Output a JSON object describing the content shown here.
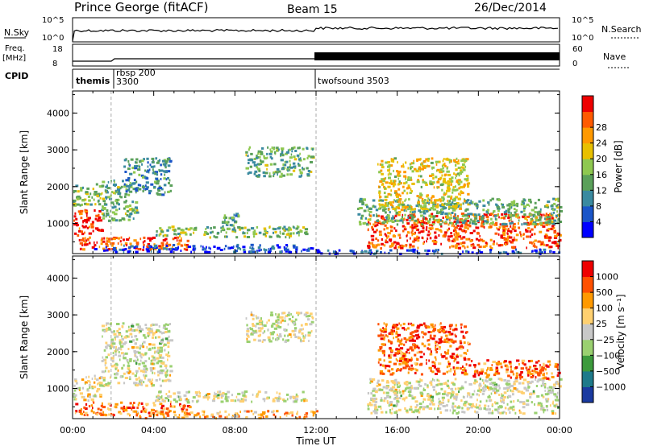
{
  "header": {
    "station": "Prince George (fitACF)",
    "beam": "Beam 15",
    "date": "26/Dec/2014"
  },
  "top_panels": {
    "nsky_label": "N.Sky",
    "nsky_ticks": [
      "10^5",
      "10^0"
    ],
    "nsearch_label": "N.Search",
    "nsearch_ticks": [
      "10^5",
      "10^0"
    ],
    "freq_label": "Freq.",
    "freq_unit": "[MHz]",
    "freq_ticks": [
      "18",
      "8"
    ],
    "nave_label": "Nave",
    "nave_ticks": [
      "60",
      "0"
    ],
    "cpid_label": "CPID",
    "cpid_segments": [
      {
        "label": "themis",
        "start_hour": 0
      },
      {
        "label": "rbsp 200",
        "start_hour": 1.6
      },
      {
        "label": "3300",
        "start_hour": 1.6
      },
      {
        "label": "twofsound 3503",
        "start_hour": 12
      }
    ]
  },
  "chart_data": [
    {
      "type": "heatmap",
      "name": "Power",
      "ylabel": "Slant Range [km]",
      "xlabel": "Time UT",
      "xlim_hours": [
        0,
        24
      ],
      "ylim_km": [
        180,
        4600
      ],
      "yticks": [
        "1000",
        "2000",
        "3000",
        "4000"
      ],
      "xticks": [
        "00:00",
        "04:00",
        "08:00",
        "12:00",
        "16:00",
        "20:00",
        "00:00"
      ],
      "colorbar": {
        "label": "Power [dB]",
        "ticks": [
          "4",
          "8",
          "12",
          "16",
          "20",
          "24",
          "28"
        ],
        "colors": [
          "#0000ff",
          "#1a55c8",
          "#3a8aa0",
          "#5aa05a",
          "#8ec850",
          "#e8c000",
          "#ff9900",
          "#ff5a00",
          "#ee0000"
        ]
      },
      "regions": [
        {
          "t0": 0.0,
          "t1": 1.4,
          "r0": 700,
          "r1": 1400,
          "level": 0.92
        },
        {
          "t0": 0.0,
          "t1": 1.6,
          "r0": 1500,
          "r1": 2100,
          "level": 0.45
        },
        {
          "t0": 0.1,
          "t1": 5.8,
          "r0": 300,
          "r1": 650,
          "level": 0.85
        },
        {
          "t0": 1.4,
          "t1": 3.2,
          "r0": 1100,
          "r1": 2200,
          "level": 0.4
        },
        {
          "t0": 2.5,
          "t1": 4.8,
          "r0": 1800,
          "r1": 2800,
          "level": 0.3
        },
        {
          "t0": 1.0,
          "t1": 12.0,
          "r0": 250,
          "r1": 450,
          "level": 0.12
        },
        {
          "t0": 4.0,
          "t1": 11.5,
          "r0": 650,
          "r1": 950,
          "level": 0.45
        },
        {
          "t0": 7.3,
          "t1": 8.3,
          "r0": 850,
          "r1": 1300,
          "level": 0.35
        },
        {
          "t0": 8.5,
          "t1": 11.8,
          "r0": 2300,
          "r1": 3100,
          "level": 0.4
        },
        {
          "t0": 14.5,
          "t1": 24.0,
          "r0": 350,
          "r1": 1300,
          "level": 0.85
        },
        {
          "t0": 14.0,
          "t1": 24.0,
          "r0": 1000,
          "r1": 1700,
          "level": 0.4
        },
        {
          "t0": 15.0,
          "t1": 19.5,
          "r0": 1400,
          "r1": 2800,
          "level": 0.6
        },
        {
          "t0": 12.0,
          "t1": 24.0,
          "r0": 200,
          "r1": 320,
          "level": 0.15
        }
      ]
    },
    {
      "type": "heatmap",
      "name": "Velocity",
      "ylabel": "Slant Range [km]",
      "xlabel": "Time UT",
      "xlim_hours": [
        0,
        24
      ],
      "ylim_km": [
        180,
        4600
      ],
      "yticks": [
        "1000",
        "2000",
        "3000",
        "4000"
      ],
      "xticks": [
        "00:00",
        "04:00",
        "08:00",
        "12:00",
        "16:00",
        "20:00",
        "00:00"
      ],
      "colorbar": {
        "label": "Velocity [m s⁻¹]",
        "ticks": [
          "1000",
          "500",
          "100",
          "25",
          "−25",
          "−100",
          "−500",
          "−1000"
        ],
        "colors": [
          "#1a3aa0",
          "#1e7a8a",
          "#3c9a3c",
          "#9ad070",
          "#c8c8c8",
          "#ffd070",
          "#ff9900",
          "#ff5000",
          "#ee0000"
        ]
      },
      "regions": [
        {
          "t0": 0.0,
          "t1": 1.4,
          "r0": 700,
          "r1": 1400,
          "level": 0.55
        },
        {
          "t0": 0.1,
          "t1": 5.8,
          "r0": 300,
          "r1": 650,
          "level": 0.78
        },
        {
          "t0": 1.4,
          "t1": 4.8,
          "r0": 1100,
          "r1": 2800,
          "level": 0.5
        },
        {
          "t0": 4.0,
          "t1": 11.5,
          "r0": 650,
          "r1": 950,
          "level": 0.5
        },
        {
          "t0": 8.5,
          "t1": 11.8,
          "r0": 2300,
          "r1": 3100,
          "level": 0.5
        },
        {
          "t0": 14.5,
          "t1": 24.0,
          "r0": 350,
          "r1": 1300,
          "level": 0.5
        },
        {
          "t0": 15.0,
          "t1": 19.5,
          "r0": 1400,
          "r1": 2800,
          "level": 0.82
        },
        {
          "t0": 19.5,
          "t1": 24.0,
          "r0": 1300,
          "r1": 1800,
          "level": 0.8
        },
        {
          "t0": 3.0,
          "t1": 12.0,
          "r0": 220,
          "r1": 420,
          "level": 0.68
        }
      ]
    }
  ]
}
